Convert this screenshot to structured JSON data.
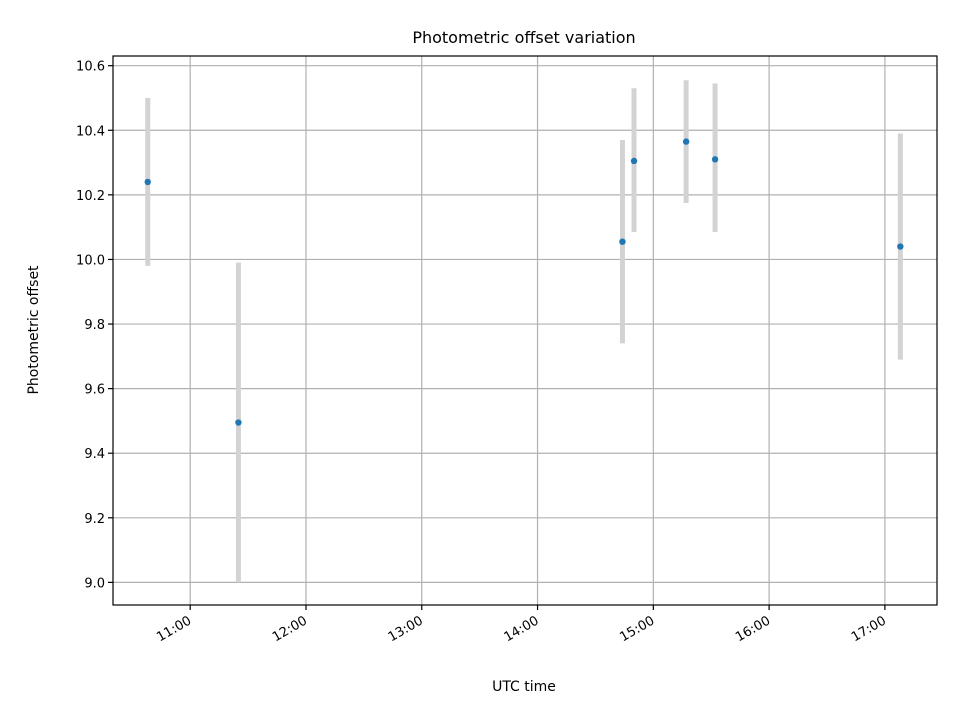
{
  "chart_data": {
    "type": "scatter",
    "title": "Photometric offset variation",
    "xlabel": "UTC time",
    "ylabel": "Photometric offset",
    "x_axis_type": "time",
    "xlim": [
      "10:20",
      "17:27"
    ],
    "ylim": [
      8.93,
      10.63
    ],
    "x_ticks": [
      "11:00",
      "12:00",
      "13:00",
      "14:00",
      "15:00",
      "16:00",
      "17:00"
    ],
    "y_ticks": [
      9.0,
      9.2,
      9.4,
      9.6,
      9.8,
      10.0,
      10.2,
      10.4,
      10.6
    ],
    "y_tick_labels": [
      "9.0",
      "9.2",
      "9.4",
      "9.6",
      "9.8",
      "10.0",
      "10.2",
      "10.4",
      "10.6"
    ],
    "grid": true,
    "points": [
      {
        "time": "10:38",
        "y": 10.24,
        "y_low": 9.98,
        "y_high": 10.5
      },
      {
        "time": "11:25",
        "y": 9.495,
        "y_low": 9.0,
        "y_high": 9.99
      },
      {
        "time": "14:44",
        "y": 10.055,
        "y_low": 9.74,
        "y_high": 10.37
      },
      {
        "time": "14:50",
        "y": 10.305,
        "y_low": 10.085,
        "y_high": 10.53
      },
      {
        "time": "15:17",
        "y": 10.365,
        "y_low": 10.175,
        "y_high": 10.555
      },
      {
        "time": "15:32",
        "y": 10.31,
        "y_low": 10.085,
        "y_high": 10.545
      },
      {
        "time": "17:08",
        "y": 10.04,
        "y_low": 9.69,
        "y_high": 10.39
      }
    ],
    "colors": {
      "marker": "#1f77b4",
      "errorbar": "#d3d3d3",
      "grid": "#b0b0b0",
      "axes": "#000000"
    }
  }
}
